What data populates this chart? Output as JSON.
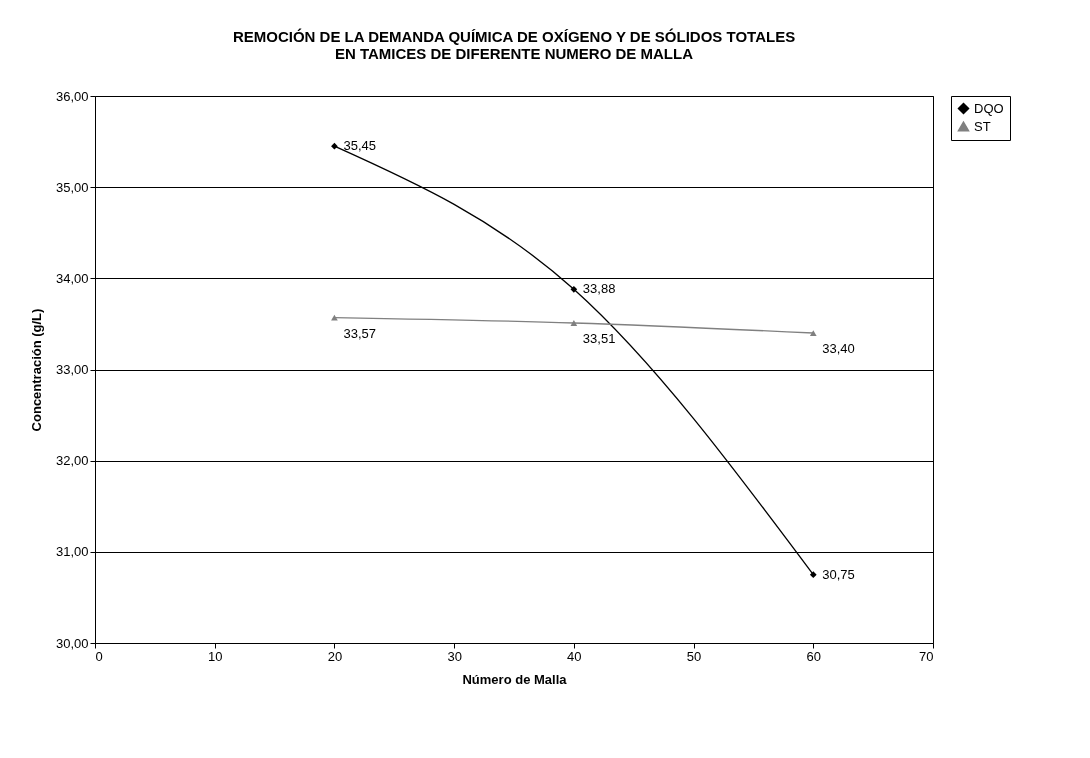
{
  "chart_data": {
    "type": "line",
    "title": [
      "REMOCIÓN DE LA DEMANDA QUÍMICA DE OXÍGENO Y DE SÓLIDOS TOTALES",
      "EN TAMICES DE DIFERENTE NUMERO DE MALLA"
    ],
    "xlabel": "Número de Malla",
    "ylabel": "Concentración (g/L)",
    "x": [
      20,
      40,
      60
    ],
    "series": [
      {
        "name": "DQO",
        "color": "#000000",
        "marker": "diamond",
        "values": [
          35.45,
          33.88,
          30.75
        ],
        "value_labels": [
          "35,45",
          "33,88",
          "30,75"
        ]
      },
      {
        "name": "ST",
        "color": "#808080",
        "marker": "triangle",
        "values": [
          33.57,
          33.51,
          33.4
        ],
        "value_labels": [
          "33,57",
          "33,51",
          "33,40"
        ]
      }
    ],
    "xlim": [
      0,
      70
    ],
    "xticks": [
      0,
      10,
      20,
      30,
      40,
      50,
      60,
      70
    ],
    "ylim": [
      30,
      36
    ],
    "yticks": [
      {
        "value": 30,
        "label": "30,00"
      },
      {
        "value": 31,
        "label": "31,00"
      },
      {
        "value": 32,
        "label": "32,00"
      },
      {
        "value": 33,
        "label": "33,00"
      },
      {
        "value": 34,
        "label": "34,00"
      },
      {
        "value": 35,
        "label": "35,00"
      },
      {
        "value": 36,
        "label": "36,00"
      }
    ],
    "grid": "y",
    "legend": "right"
  }
}
